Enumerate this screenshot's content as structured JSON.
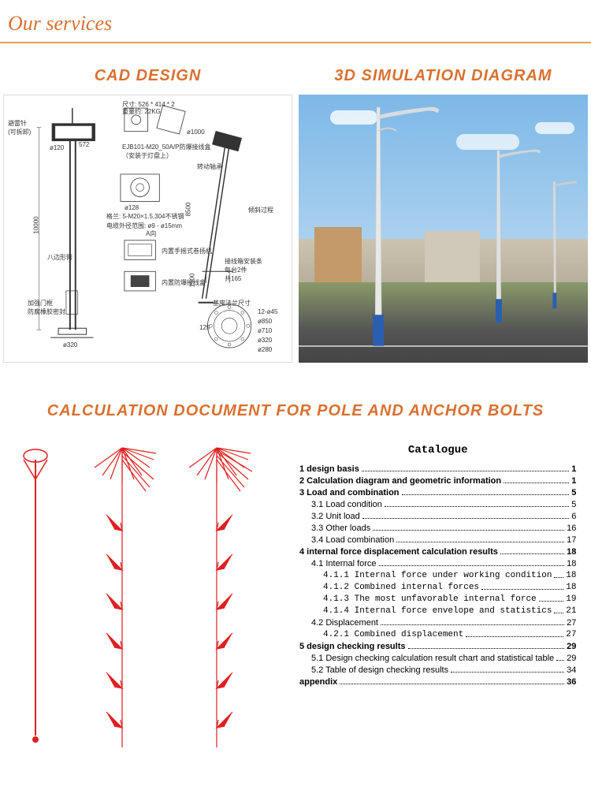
{
  "header": {
    "title": "Our services"
  },
  "colors": {
    "accent": "#d97030",
    "header_rule": "#e8a050",
    "force_red": "#e02020",
    "sky_top": "#7db8e8",
    "sky_bottom": "#b8d8f0",
    "pole_blue": "#2a5fb0"
  },
  "sections": {
    "cad": {
      "title": "CAD DESIGN"
    },
    "sim": {
      "title": "3D SIMULATION DIAGRAM"
    },
    "calc": {
      "title": "CALCULATION DOCUMENT FOR POLE AND ANCHOR BOLTS"
    }
  },
  "cad_labels": {
    "dim_top": "尺寸: 526 * 414 * 2",
    "weight": "重量约: 22KG",
    "d1000": "ø1000",
    "d120": "ø120",
    "n572": "572",
    "junction": "EJB101-M20_50A/P防爆接线盒（安装于灯盘上）",
    "hinge": "转动轴承",
    "tilt": "倾斜过程",
    "d320": "ø320",
    "h10000": "10000",
    "h8500": "8500",
    "h1500": "1500",
    "lightning": "避雷针\n(可拆卸)",
    "octagon": "八边形臂",
    "door": "加强门框\n防腐橡胶密封",
    "d128": "ø128",
    "gland": "格兰: 5-M20×1.5,304不锈钢",
    "cable": "电缆外径范围: ø9 - ø15mm",
    "view_a": "A向",
    "winch": "内置手摇式卷扬机",
    "fuse": "内置防爆接线盒",
    "jbox_title": "接线箱安装条\n每台2件\n共165",
    "flange_title": "基座法兰尺寸",
    "n125": "125",
    "b12": "12-ø45",
    "b850": "ø850",
    "b710": "ø710",
    "b520": "ø320",
    "b280": "ø280"
  },
  "catalogue": {
    "title": "Catalogue",
    "items": [
      {
        "label": "1 design basis",
        "page": "1",
        "bold": true,
        "indent": 0
      },
      {
        "label": "2 Calculation diagram and geometric information",
        "page": "1",
        "bold": true,
        "indent": 0
      },
      {
        "label": "3 Load and combination",
        "page": "5",
        "bold": true,
        "indent": 0
      },
      {
        "label": "3.1 Load condition",
        "page": "5",
        "bold": false,
        "indent": 1
      },
      {
        "label": "3.2 Unit load",
        "page": "6",
        "bold": false,
        "indent": 1
      },
      {
        "label": "3.3 Other loads",
        "page": "16",
        "bold": false,
        "indent": 1
      },
      {
        "label": "3.4 Load combination",
        "page": "17",
        "bold": false,
        "indent": 1
      },
      {
        "label": "4 internal force displacement calculation results",
        "page": "18",
        "bold": true,
        "indent": 0
      },
      {
        "label": "4.1 Internal force",
        "page": "18",
        "bold": false,
        "indent": 1
      },
      {
        "label": "4.1.1 Internal force under working condition",
        "page": "18",
        "bold": false,
        "indent": 2,
        "mono": true
      },
      {
        "label": "4.1.2 Combined internal forces",
        "page": "18",
        "bold": false,
        "indent": 2,
        "mono": true
      },
      {
        "label": "4.1.3 The most unfavorable internal force",
        "page": "19",
        "bold": false,
        "indent": 2,
        "mono": true
      },
      {
        "label": "4.1.4 Internal force envelope and statistics",
        "page": "21",
        "bold": false,
        "indent": 2,
        "mono": true
      },
      {
        "label": "4.2 Displacement",
        "page": "27",
        "bold": false,
        "indent": 1
      },
      {
        "label": "4.2.1 Combined displacement",
        "page": "27",
        "bold": false,
        "indent": 2,
        "mono": true
      },
      {
        "label": "5 design checking results",
        "page": "29",
        "bold": true,
        "indent": 0
      },
      {
        "label": "5.1 Design checking calculation result chart and statistical table",
        "page": "29",
        "bold": false,
        "indent": 1
      },
      {
        "label": "5.2 Table of design checking results",
        "page": "34",
        "bold": false,
        "indent": 1
      },
      {
        "label": "appendix",
        "page": "36",
        "bold": true,
        "indent": 0
      }
    ]
  }
}
